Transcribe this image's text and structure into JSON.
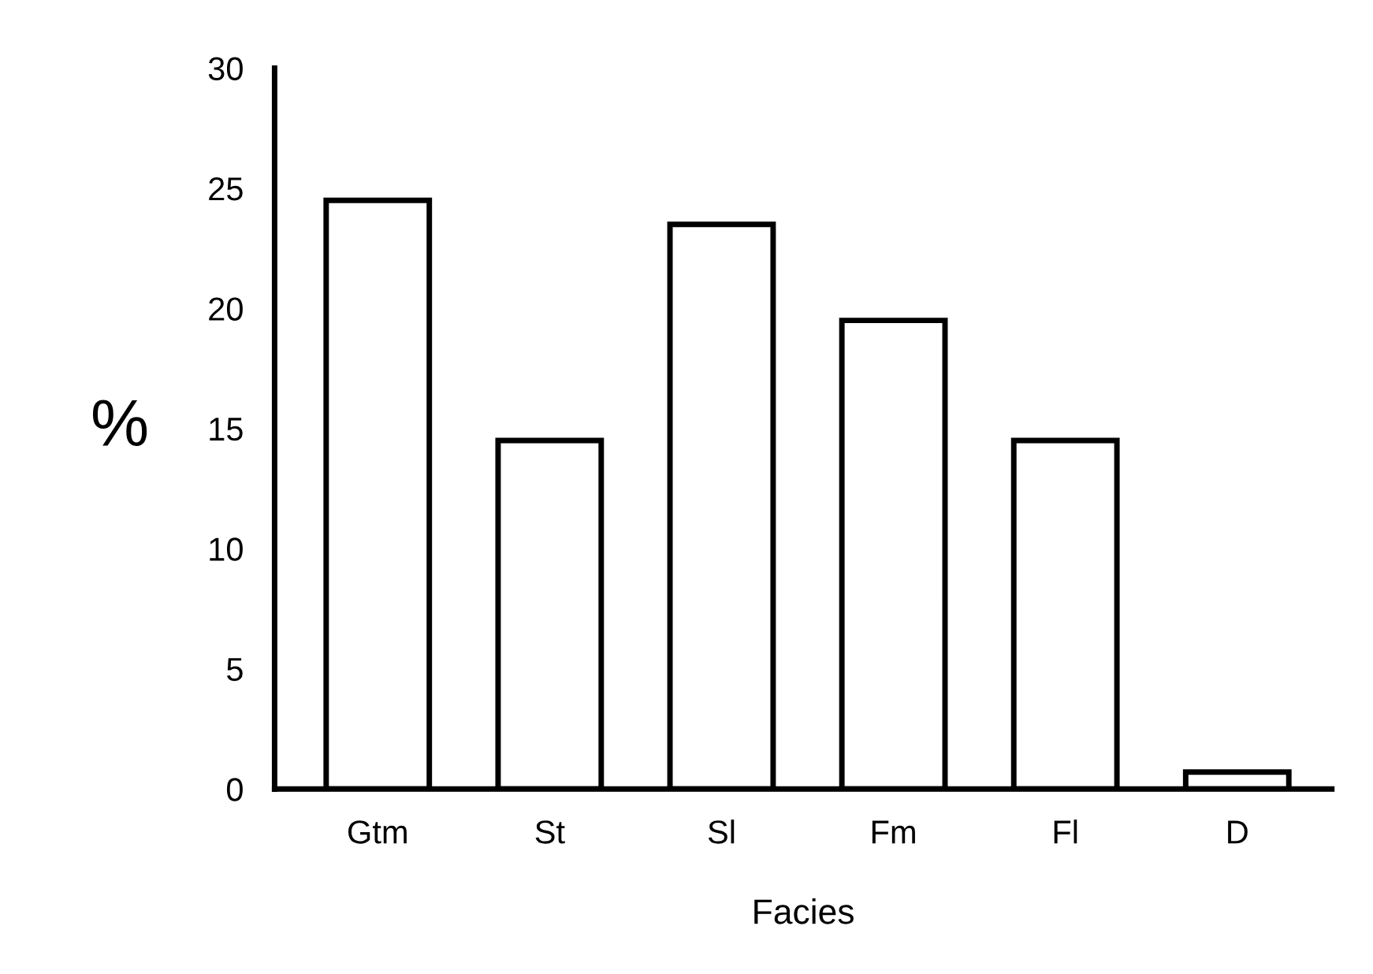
{
  "chart_data": {
    "type": "bar",
    "xlabel": "Facies",
    "ylabel": "%",
    "categories": [
      "Gtm",
      "St",
      "Sl",
      "Fm",
      "Fl",
      "D"
    ],
    "values": [
      24.5,
      14.5,
      23.5,
      19.5,
      14.5,
      0.7
    ],
    "color": "#ffffff",
    "ylim": [
      0,
      30
    ],
    "yticks": [
      0,
      5,
      10,
      15,
      20,
      25,
      30
    ],
    "grid": false,
    "legend": false
  }
}
